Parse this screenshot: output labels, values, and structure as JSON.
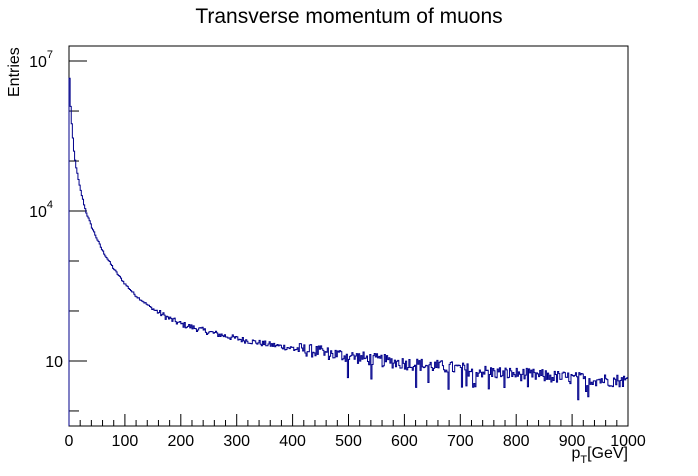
{
  "chart_data": {
    "type": "line",
    "title": "Transverse momentum of muons",
    "xlabel_main": "p",
    "xlabel_sub": "T",
    "xlabel_unit": "[GeV]",
    "ylabel": "Entries",
    "xlim": [
      0,
      1000
    ],
    "ylim": [
      0.5,
      20000000
    ],
    "yscale": "log",
    "grid": false,
    "legend": "none",
    "line_color": "#00008b",
    "x_ticks": [
      0,
      100,
      200,
      300,
      400,
      500,
      600,
      700,
      800,
      900,
      1000
    ],
    "y_ticks": [
      {
        "value": 10,
        "base": "10",
        "exp": ""
      },
      {
        "value": 10000,
        "base": "10",
        "exp": "4"
      },
      {
        "value": 10000000,
        "base": "10",
        "exp": "7"
      }
    ],
    "bin_width": 2,
    "series": [
      {
        "x": [
          0,
          2,
          4,
          6,
          8,
          10,
          15,
          20,
          30,
          40,
          50,
          60,
          80,
          100,
          120,
          150,
          180,
          200,
          250,
          300,
          350,
          400,
          450,
          500,
          550,
          600,
          650,
          700,
          750,
          800,
          850,
          900,
          950,
          1000
        ],
        "values": [
          10000000,
          2000000,
          800000,
          380000,
          200000,
          120000,
          55000,
          28000,
          10000,
          5000,
          2800,
          1600,
          700,
          350,
          200,
          110,
          70,
          55,
          38,
          28,
          22,
          18,
          15,
          12.5,
          10.5,
          9,
          8,
          7,
          6,
          5.5,
          5,
          4.5,
          4.2,
          4
        ]
      }
    ]
  }
}
